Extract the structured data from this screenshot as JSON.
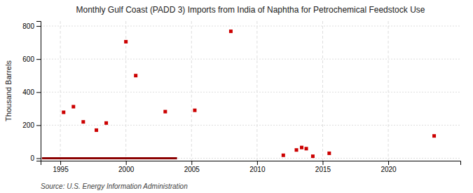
{
  "chart_data": {
    "type": "scatter",
    "title": "Monthly Gulf Coast (PADD 3) Imports from India of Naphtha for Petrochemical Feedstock Use",
    "y_label": "Thousand Barrels",
    "annotations": [
      "Source: U.S. Energy Information Administration"
    ],
    "series": [
      {
        "type": "scatter",
        "marker": "square",
        "color": "#cc0000",
        "x": [
          1995.25,
          1996.0,
          1996.75,
          1997.75,
          1998.5,
          2000.0,
          2000.75,
          2003.0,
          2005.25,
          2008.0,
          2012.0,
          2013.0,
          2013.4,
          2013.75,
          2014.25,
          2015.5,
          2023.5
        ],
        "values": [
          278,
          312,
          220,
          170,
          213,
          705,
          500,
          282,
          290,
          768,
          18,
          50,
          65,
          58,
          12,
          30,
          135
        ]
      },
      {
        "type": "line",
        "line_style": "solid",
        "color": "#8b0000",
        "x": [
          1993.6,
          2003.9
        ],
        "values": [
          0,
          0
        ]
      }
    ],
    "xlim": [
      1993.5,
      2025.5
    ],
    "ylim": [
      -15,
      830
    ],
    "xticks": [
      1995,
      2000,
      2005,
      2010,
      2015,
      2020
    ],
    "yticks": [
      0,
      200,
      400,
      600,
      800
    ],
    "grid": true
  }
}
